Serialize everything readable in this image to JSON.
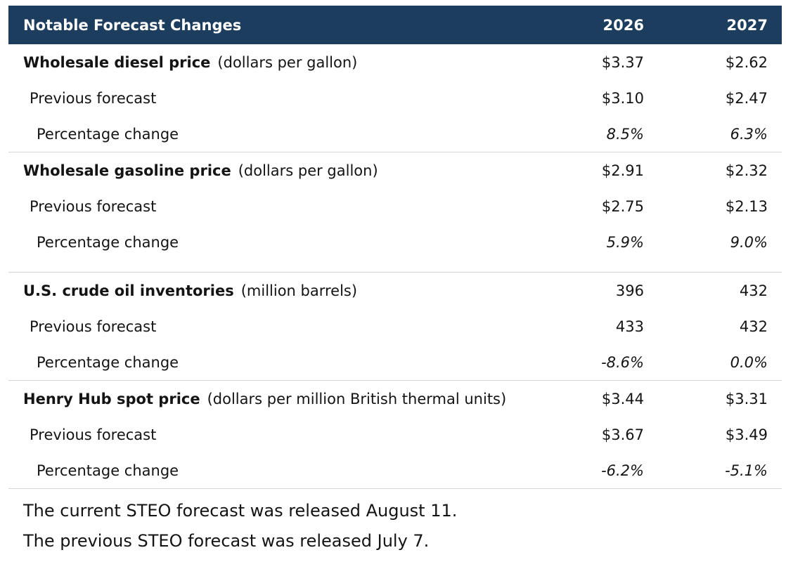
{
  "header": {
    "title": "Notable Forecast Changes",
    "year1": "2026",
    "year2": "2027"
  },
  "groups": [
    {
      "name": "Wholesale diesel price",
      "unit": "(dollars per gallon)",
      "current": [
        "$3.37",
        "$2.62"
      ],
      "previous_label": "Previous forecast",
      "previous": [
        "$3.10",
        "$2.47"
      ],
      "change_label": "Percentage change",
      "change": [
        "8.5%",
        "6.3%"
      ]
    },
    {
      "name": "Wholesale gasoline price",
      "unit": "(dollars per gallon)",
      "current": [
        "$2.91",
        "$2.32"
      ],
      "previous_label": "Previous forecast",
      "previous": [
        "$2.75",
        "$2.13"
      ],
      "change_label": "Percentage change",
      "change": [
        "5.9%",
        "9.0%"
      ]
    },
    {
      "name": "U.S. crude oil inventories",
      "unit": "(million barrels)",
      "current": [
        "396",
        "432"
      ],
      "previous_label": "Previous forecast",
      "previous": [
        "433",
        "432"
      ],
      "change_label": "Percentage change",
      "change": [
        "-8.6%",
        "0.0%"
      ]
    },
    {
      "name": "Henry Hub spot price",
      "unit": "(dollars per million British thermal units)",
      "current": [
        "$3.44",
        "$3.31"
      ],
      "previous_label": "Previous forecast",
      "previous": [
        "$3.67",
        "$3.49"
      ],
      "change_label": "Percentage change",
      "change": [
        "-6.2%",
        "-5.1%"
      ]
    }
  ],
  "notes": [
    "The current STEO forecast was released August 11.",
    "The previous STEO forecast was released July 7."
  ],
  "colors": {
    "header_bg": "#1c3d5e",
    "header_text": "#ffffff",
    "divider": "#d6d6d6"
  }
}
